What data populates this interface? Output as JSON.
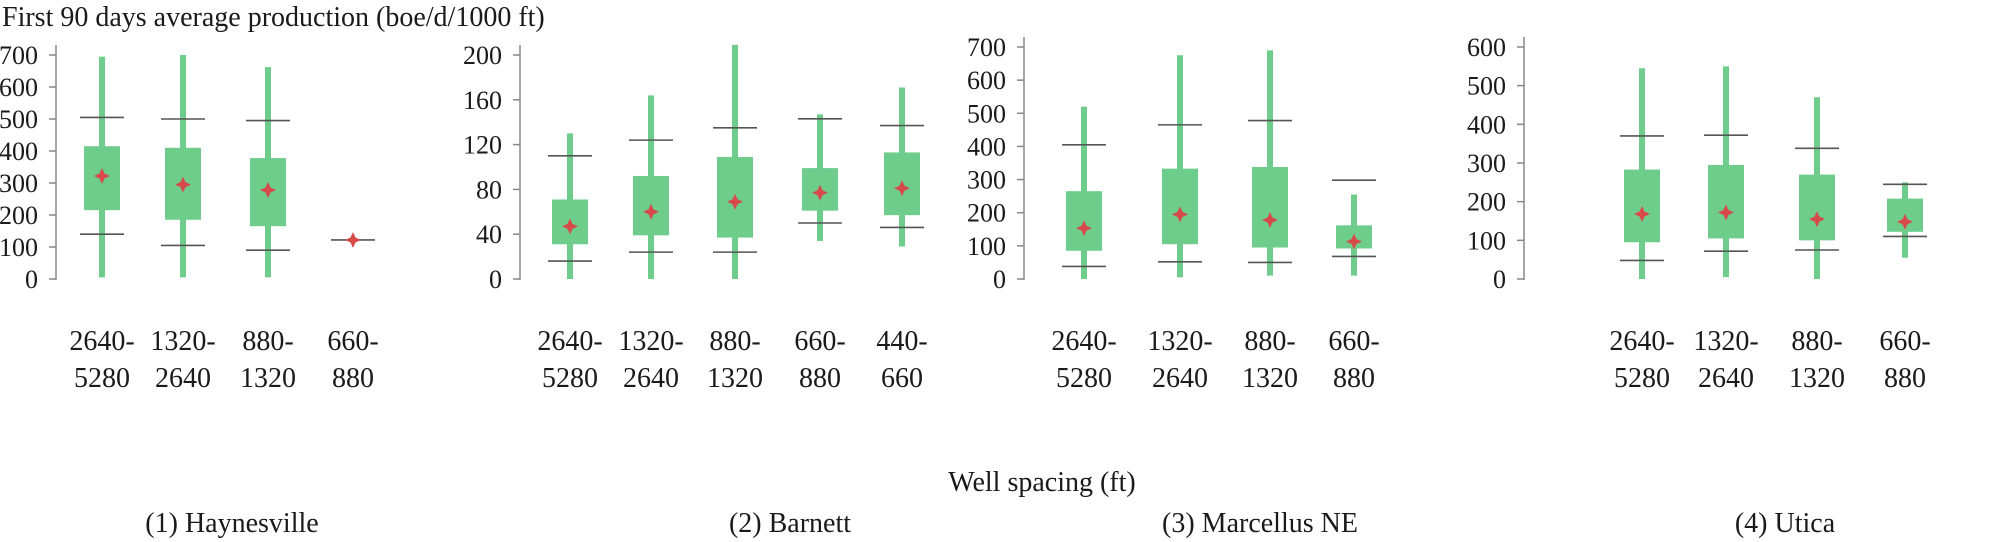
{
  "figure": {
    "ylabel": "First 90 days average production (boe/d/1000 ft)",
    "xlabel": "Well spacing (ft)"
  },
  "colors": {
    "box": "#6fcd8c",
    "whisker": "#6fcd8c",
    "mean_marker": "#d84a4a",
    "limit_line": "#555555",
    "axis": "#888888"
  },
  "chart_data": [
    {
      "type": "box",
      "title": "(1) Haynesville",
      "ylim": [
        0,
        700
      ],
      "yticks": [
        0,
        100,
        200,
        300,
        400,
        500,
        600,
        700
      ],
      "categories": [
        "2640-5280",
        "1320-2640",
        "880-1320",
        "660-880"
      ],
      "boxes": [
        {
          "min": 5,
          "q1": 215,
          "q3": 415,
          "max": 695,
          "mean": 322,
          "lower": 140,
          "upper": 505
        },
        {
          "min": 5,
          "q1": 185,
          "q3": 410,
          "max": 700,
          "mean": 295,
          "lower": 105,
          "upper": 500
        },
        {
          "min": 5,
          "q1": 165,
          "q3": 378,
          "max": 662,
          "mean": 278,
          "lower": 90,
          "upper": 495
        },
        {
          "min": 122,
          "q1": 122,
          "q3": 122,
          "max": 122,
          "mean": 122,
          "lower": 122,
          "upper": 122
        }
      ]
    },
    {
      "type": "box",
      "title": "(2) Barnett",
      "ylim": [
        0,
        200
      ],
      "yticks": [
        0,
        40,
        80,
        120,
        160,
        200
      ],
      "categories": [
        "2640-5280",
        "1320-2640",
        "880-1320",
        "660-880",
        "440-660"
      ],
      "boxes": [
        {
          "min": 0,
          "q1": 31,
          "q3": 71,
          "max": 130,
          "mean": 47,
          "lower": 16,
          "upper": 110
        },
        {
          "min": 0,
          "q1": 39,
          "q3": 92,
          "max": 164,
          "mean": 60,
          "lower": 24,
          "upper": 124
        },
        {
          "min": 0,
          "q1": 37,
          "q3": 109,
          "max": 209,
          "mean": 69,
          "lower": 24,
          "upper": 135
        },
        {
          "min": 34,
          "q1": 61,
          "q3": 99,
          "max": 147,
          "mean": 77,
          "lower": 50,
          "upper": 143
        },
        {
          "min": 29,
          "q1": 57,
          "q3": 113,
          "max": 171,
          "mean": 81,
          "lower": 46,
          "upper": 137
        }
      ]
    },
    {
      "type": "box",
      "title": "(3) Marcellus NE",
      "ylim": [
        0,
        700
      ],
      "yticks": [
        0,
        100,
        200,
        300,
        400,
        500,
        600,
        700
      ],
      "categories": [
        "2640-5280",
        "1320-2640",
        "880-1320",
        "660-880"
      ],
      "boxes": [
        {
          "min": 0,
          "q1": 85,
          "q3": 265,
          "max": 520,
          "mean": 153,
          "lower": 38,
          "upper": 405
        },
        {
          "min": 5,
          "q1": 105,
          "q3": 333,
          "max": 675,
          "mean": 195,
          "lower": 52,
          "upper": 465
        },
        {
          "min": 10,
          "q1": 95,
          "q3": 338,
          "max": 690,
          "mean": 178,
          "lower": 50,
          "upper": 478
        },
        {
          "min": 10,
          "q1": 92,
          "q3": 162,
          "max": 255,
          "mean": 113,
          "lower": 68,
          "upper": 298
        }
      ]
    },
    {
      "type": "box",
      "title": "(4) Utica",
      "ylim": [
        0,
        600
      ],
      "yticks": [
        0,
        100,
        200,
        300,
        400,
        500,
        600
      ],
      "categories": [
        "2640-5280",
        "1320-2640",
        "880-1320",
        "660-880"
      ],
      "boxes": [
        {
          "min": 0,
          "q1": 95,
          "q3": 283,
          "max": 545,
          "mean": 168,
          "lower": 48,
          "upper": 370
        },
        {
          "min": 5,
          "q1": 105,
          "q3": 295,
          "max": 550,
          "mean": 172,
          "lower": 72,
          "upper": 372
        },
        {
          "min": 0,
          "q1": 100,
          "q3": 270,
          "max": 470,
          "mean": 155,
          "lower": 75,
          "upper": 338
        },
        {
          "min": 55,
          "q1": 122,
          "q3": 208,
          "max": 250,
          "mean": 148,
          "lower": 110,
          "upper": 245
        }
      ]
    }
  ]
}
